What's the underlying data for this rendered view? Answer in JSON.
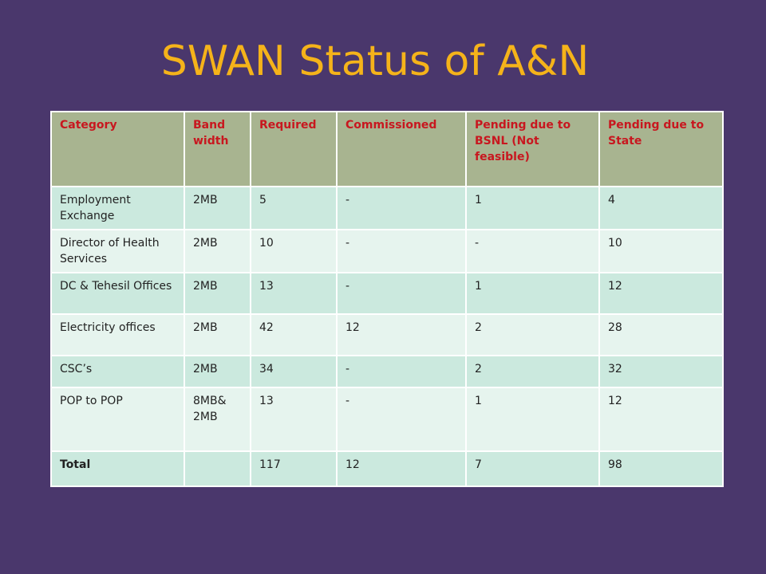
{
  "slide": {
    "title": "SWAN Status of A&N"
  },
  "table": {
    "headers": [
      "Category",
      "Band width",
      "Required",
      "Commissioned",
      "Pending due to BSNL (Not feasible)",
      "Pending due to State"
    ],
    "rows": [
      [
        "Employment Exchange",
        "2MB",
        "5",
        "-",
        "1",
        "4"
      ],
      [
        "Director of Health Services",
        "2MB",
        "10",
        "-",
        "-",
        "10"
      ],
      [
        "DC & Tehesil Offices",
        "2MB",
        "13",
        "-",
        "1",
        "12"
      ],
      [
        "Electricity offices",
        "2MB",
        "42",
        "12",
        "2",
        "28"
      ],
      [
        "CSC’s",
        "2MB",
        "34",
        "-",
        "2",
        "32"
      ],
      [
        "POP to POP",
        "8MB& 2MB",
        "13",
        "-",
        "1",
        "12"
      ]
    ],
    "total": [
      "Total",
      "",
      "117",
      "12",
      "7",
      "98"
    ]
  },
  "colors": {
    "background": "#4a376c",
    "title": "#f5b31a",
    "header_bg": "#a8b490",
    "header_text": "#c8171f",
    "row_odd": "#cbe9de",
    "row_even": "#e6f4ee"
  }
}
